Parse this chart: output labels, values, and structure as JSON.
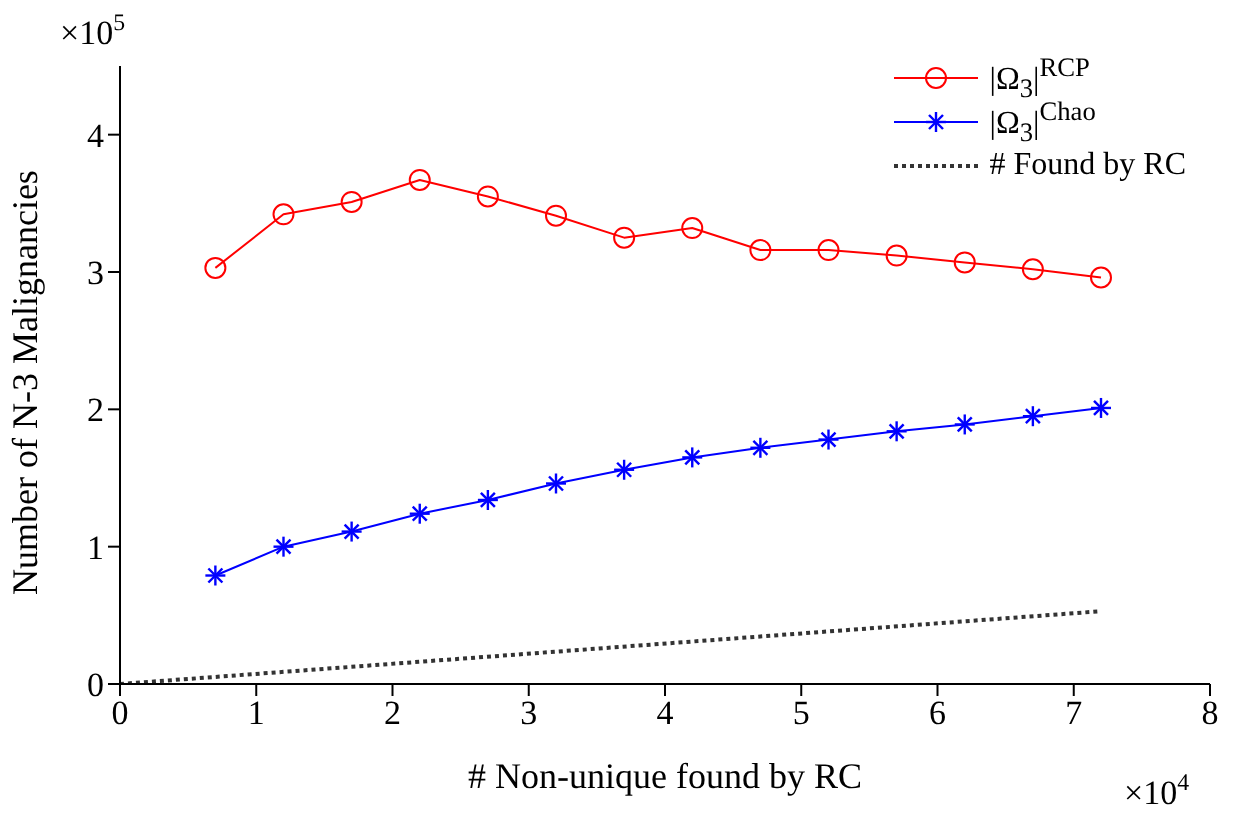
{
  "chart_data": {
    "type": "line",
    "xlabel": "# Non-unique found by RC",
    "ylabel": "Number of N-3 Malignancies",
    "annotations": [
      "×10$^{5}$",
      "×10$^{4}$"
    ],
    "x": [
      0.7,
      1.2,
      1.7,
      2.2,
      2.7,
      3.2,
      3.7,
      4.2,
      4.7,
      5.2,
      5.7,
      6.2,
      6.7,
      7.2
    ],
    "series": [
      {
        "name": "|Ω$_{3}$|$^{RCP}$",
        "color": "#ff0000",
        "marker": "circle",
        "values": [
          3.03,
          3.42,
          3.51,
          3.67,
          3.55,
          3.41,
          3.25,
          3.32,
          3.16,
          3.16,
          3.12,
          3.07,
          3.02,
          2.96
        ]
      },
      {
        "name": "|Ω$_{3}$|$^{Chao}$",
        "color": "#0000ff",
        "marker": "cross",
        "values": [
          0.79,
          1.0,
          1.11,
          1.24,
          1.34,
          1.46,
          1.56,
          1.65,
          1.72,
          1.78,
          1.84,
          1.89,
          1.95,
          2.01
        ]
      },
      {
        "name": "# Found by RC",
        "color": "#333333",
        "marker": "none",
        "line_style": "dotted",
        "x": [
          0,
          7.2
        ],
        "values": [
          0,
          0.53
        ]
      }
    ],
    "xlim": [
      0,
      8
    ],
    "xticks": [
      0,
      1,
      2,
      3,
      4,
      5,
      6,
      7,
      8
    ],
    "ylim": [
      0,
      4.5
    ],
    "yticks": [
      0,
      1,
      2,
      3,
      4
    ],
    "grid": false,
    "legend": "top right"
  }
}
